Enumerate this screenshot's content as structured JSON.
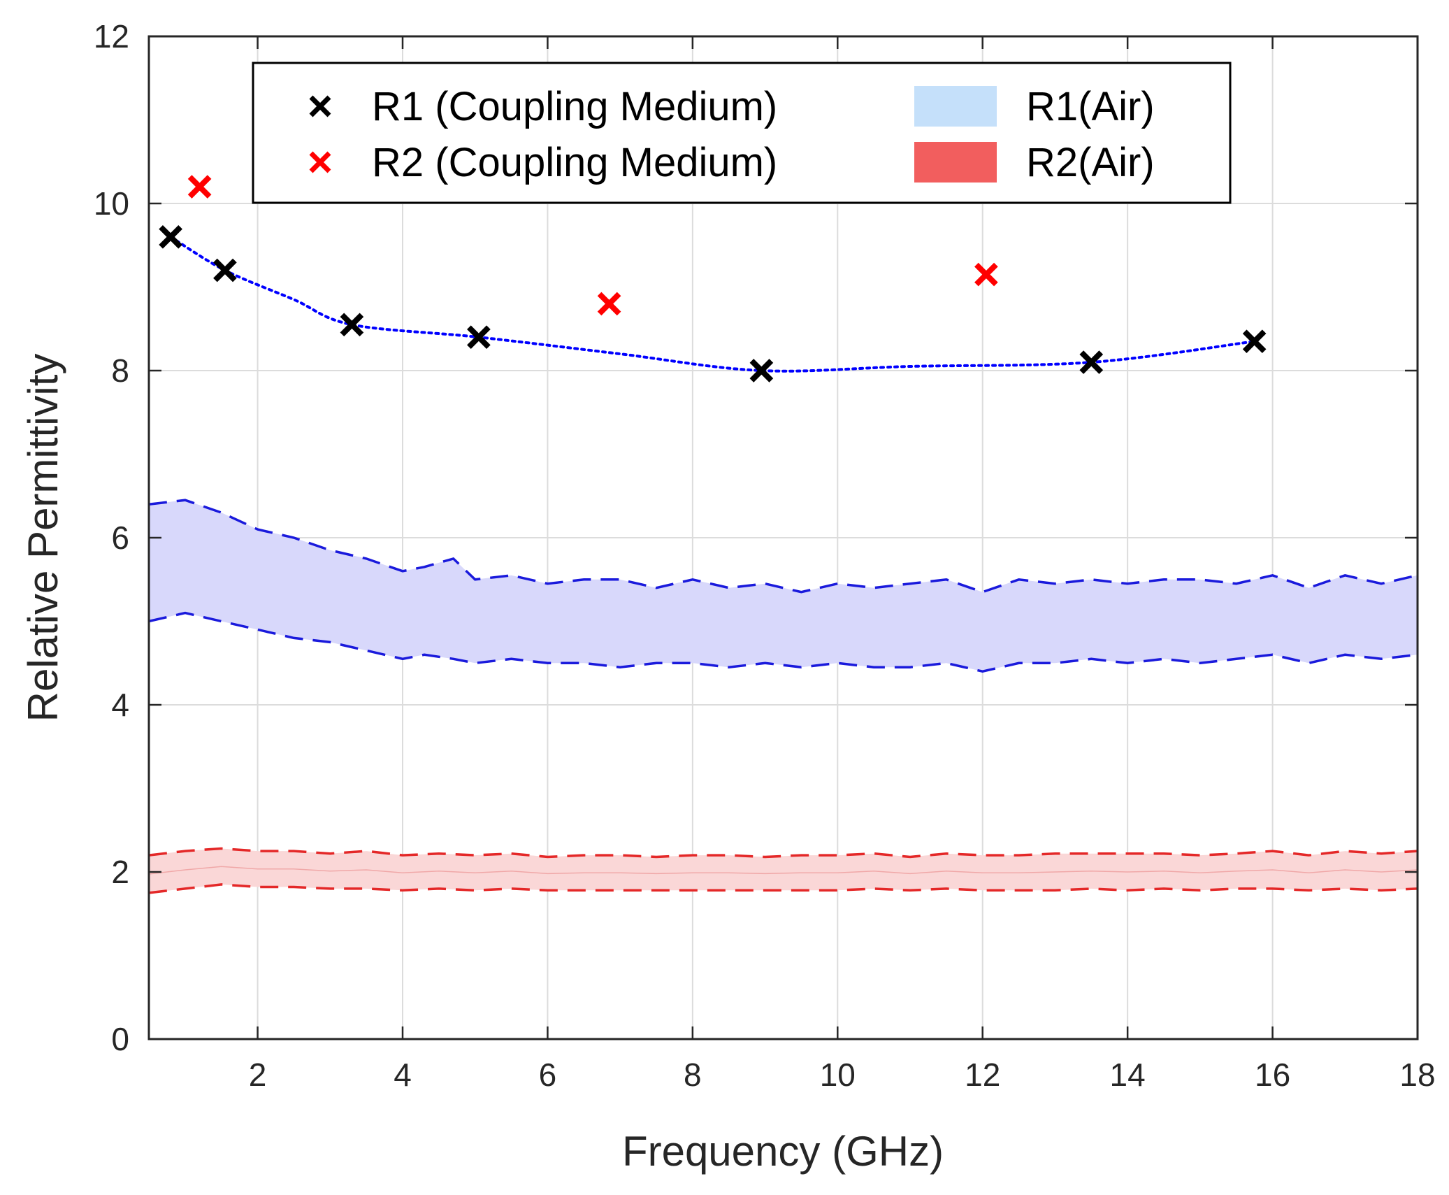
{
  "chart_data": {
    "type": "scatter",
    "xlabel": "Frequency (GHz)",
    "ylabel": "Relative Permittivity",
    "xlim": [
      0.5,
      18
    ],
    "ylim": [
      0,
      12
    ],
    "xticks": [
      2,
      4,
      6,
      8,
      10,
      12,
      14,
      16,
      18
    ],
    "yticks": [
      0,
      2,
      4,
      6,
      8,
      10,
      12
    ],
    "grid": true,
    "legend_position": "top",
    "colors": {
      "r1_marker": "#000000",
      "r2_marker": "#ff0000",
      "r1_fit": "#0000ff",
      "r1_band_fill": "#d8d8fb",
      "r1_band_edge": "#1a1adc",
      "r1_legend_patch": "#c5e0fa",
      "r2_band_fill": "#fad7d7",
      "r2_band_edge": "#e42828",
      "r2_legend_patch": "#f25e5e"
    },
    "legend": [
      {
        "label": "R1 (Coupling Medium)",
        "kind": "marker",
        "color_key": "r1_marker"
      },
      {
        "label": "R2 (Coupling Medium)",
        "kind": "marker",
        "color_key": "r2_marker"
      },
      {
        "label": "R1(Air)",
        "kind": "patch",
        "color_key": "r1_legend_patch"
      },
      {
        "label": "R2(Air)",
        "kind": "patch",
        "color_key": "r2_legend_patch"
      }
    ],
    "series": [
      {
        "name": "R1 (Coupling Medium)",
        "kind": "scatter",
        "marker": "x",
        "x": [
          0.8,
          1.55,
          3.3,
          5.05,
          8.95,
          13.5,
          15.75
        ],
        "y": [
          9.6,
          9.2,
          8.55,
          8.4,
          8.0,
          8.1,
          8.35
        ]
      },
      {
        "name": "R2 (Coupling Medium)",
        "kind": "scatter",
        "marker": "x",
        "x": [
          1.2,
          6.85,
          12.05
        ],
        "y": [
          10.2,
          8.8,
          9.15
        ]
      },
      {
        "name": "R1 (Coupling Medium) trend",
        "kind": "line",
        "style": "dotted",
        "x": [
          0.8,
          1.55,
          2.5,
          3.3,
          5.05,
          7.0,
          8.95,
          11.0,
          13.5,
          15.75
        ],
        "y": [
          9.6,
          9.2,
          8.85,
          8.55,
          8.4,
          8.2,
          8.0,
          8.05,
          8.1,
          8.35
        ]
      },
      {
        "name": "R1(Air)",
        "kind": "band",
        "x": [
          0.5,
          1.0,
          1.5,
          2.0,
          2.5,
          3.0,
          3.5,
          4.0,
          4.3,
          4.7,
          5.0,
          5.5,
          6.0,
          6.5,
          7.0,
          7.5,
          8.0,
          8.5,
          9.0,
          9.5,
          10.0,
          10.5,
          11.0,
          11.5,
          12.0,
          12.5,
          13.0,
          13.5,
          14.0,
          14.5,
          15.0,
          15.5,
          16.0,
          16.5,
          17.0,
          17.5,
          18.0
        ],
        "upper": [
          6.4,
          6.45,
          6.3,
          6.1,
          6.0,
          5.85,
          5.75,
          5.6,
          5.65,
          5.75,
          5.5,
          5.55,
          5.45,
          5.5,
          5.5,
          5.4,
          5.5,
          5.4,
          5.45,
          5.35,
          5.45,
          5.4,
          5.45,
          5.5,
          5.35,
          5.5,
          5.45,
          5.5,
          5.45,
          5.5,
          5.5,
          5.45,
          5.55,
          5.4,
          5.55,
          5.45,
          5.55
        ],
        "lower": [
          5.0,
          5.1,
          5.0,
          4.9,
          4.8,
          4.75,
          4.65,
          4.55,
          4.6,
          4.55,
          4.5,
          4.55,
          4.5,
          4.5,
          4.45,
          4.5,
          4.5,
          4.45,
          4.5,
          4.45,
          4.5,
          4.45,
          4.45,
          4.5,
          4.4,
          4.5,
          4.5,
          4.55,
          4.5,
          4.55,
          4.5,
          4.55,
          4.6,
          4.5,
          4.6,
          4.55,
          4.6
        ]
      },
      {
        "name": "R2(Air)",
        "kind": "band",
        "x": [
          0.5,
          1.0,
          1.5,
          2.0,
          2.5,
          3.0,
          3.5,
          4.0,
          4.5,
          5.0,
          5.5,
          6.0,
          6.5,
          7.0,
          7.5,
          8.0,
          8.5,
          9.0,
          9.5,
          10.0,
          10.5,
          11.0,
          11.5,
          12.0,
          12.5,
          13.0,
          13.5,
          14.0,
          14.5,
          15.0,
          15.5,
          16.0,
          16.5,
          17.0,
          17.5,
          18.0
        ],
        "upper": [
          2.2,
          2.25,
          2.28,
          2.25,
          2.25,
          2.22,
          2.25,
          2.2,
          2.22,
          2.2,
          2.22,
          2.18,
          2.2,
          2.2,
          2.18,
          2.2,
          2.2,
          2.18,
          2.2,
          2.2,
          2.22,
          2.18,
          2.22,
          2.2,
          2.2,
          2.22,
          2.22,
          2.22,
          2.22,
          2.2,
          2.22,
          2.25,
          2.2,
          2.25,
          2.22,
          2.25
        ],
        "lower": [
          1.75,
          1.8,
          1.85,
          1.82,
          1.82,
          1.8,
          1.8,
          1.78,
          1.8,
          1.78,
          1.8,
          1.78,
          1.78,
          1.78,
          1.78,
          1.78,
          1.78,
          1.78,
          1.78,
          1.78,
          1.8,
          1.78,
          1.8,
          1.78,
          1.78,
          1.78,
          1.8,
          1.78,
          1.8,
          1.78,
          1.8,
          1.8,
          1.78,
          1.8,
          1.78,
          1.8
        ]
      }
    ]
  }
}
